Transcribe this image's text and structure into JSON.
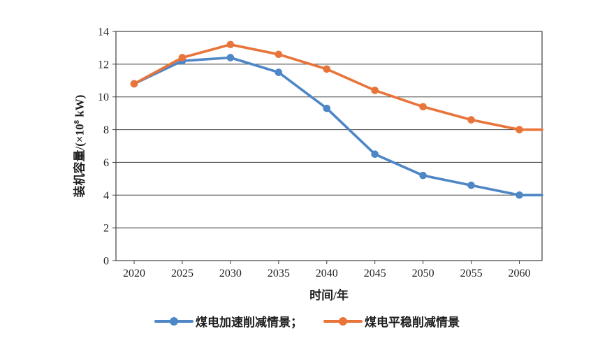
{
  "chart_data": {
    "type": "line",
    "title": "",
    "categories": [
      "2020",
      "2025",
      "2030",
      "2035",
      "2040",
      "2045",
      "2050",
      "2055",
      "2060"
    ],
    "series": [
      {
        "key": "accelerated-reduction",
        "name": "煤电加速削减情景",
        "color": "#4E86C6",
        "marker": "circle",
        "values": [
          10.8,
          12.2,
          12.4,
          11.5,
          9.3,
          6.5,
          5.2,
          4.6,
          4.0
        ]
      },
      {
        "key": "steady-reduction",
        "name": "煤电平稳削减情景",
        "color": "#E8743A",
        "marker": "circle",
        "values": [
          10.8,
          12.4,
          13.2,
          12.6,
          11.7,
          10.4,
          9.4,
          8.6,
          8.0
        ]
      }
    ],
    "legend": [
      {
        "label": "煤电加速削减情景；"
      },
      {
        "label": "煤电平稳削减情景"
      }
    ],
    "xlabel": "时间/年",
    "ylabel": "装机容量/(×10⁸ kW)",
    "ylabel_parts": {
      "prefix": "装机容量/(×10",
      "sup": "8",
      "suffix": " kW)"
    },
    "ylim": [
      0,
      14
    ],
    "ytick_step": 2,
    "yticks": [
      0,
      2,
      4,
      6,
      8,
      10,
      12,
      14
    ],
    "grid": "horizontal-only",
    "plot_border": true,
    "legend_position": "bottom-center",
    "line_extends_to_plot_edge": true,
    "style": {
      "axis_color": "#3F3F3F",
      "text_color": "#1F1F1F",
      "background": "#FFFFFF"
    }
  }
}
